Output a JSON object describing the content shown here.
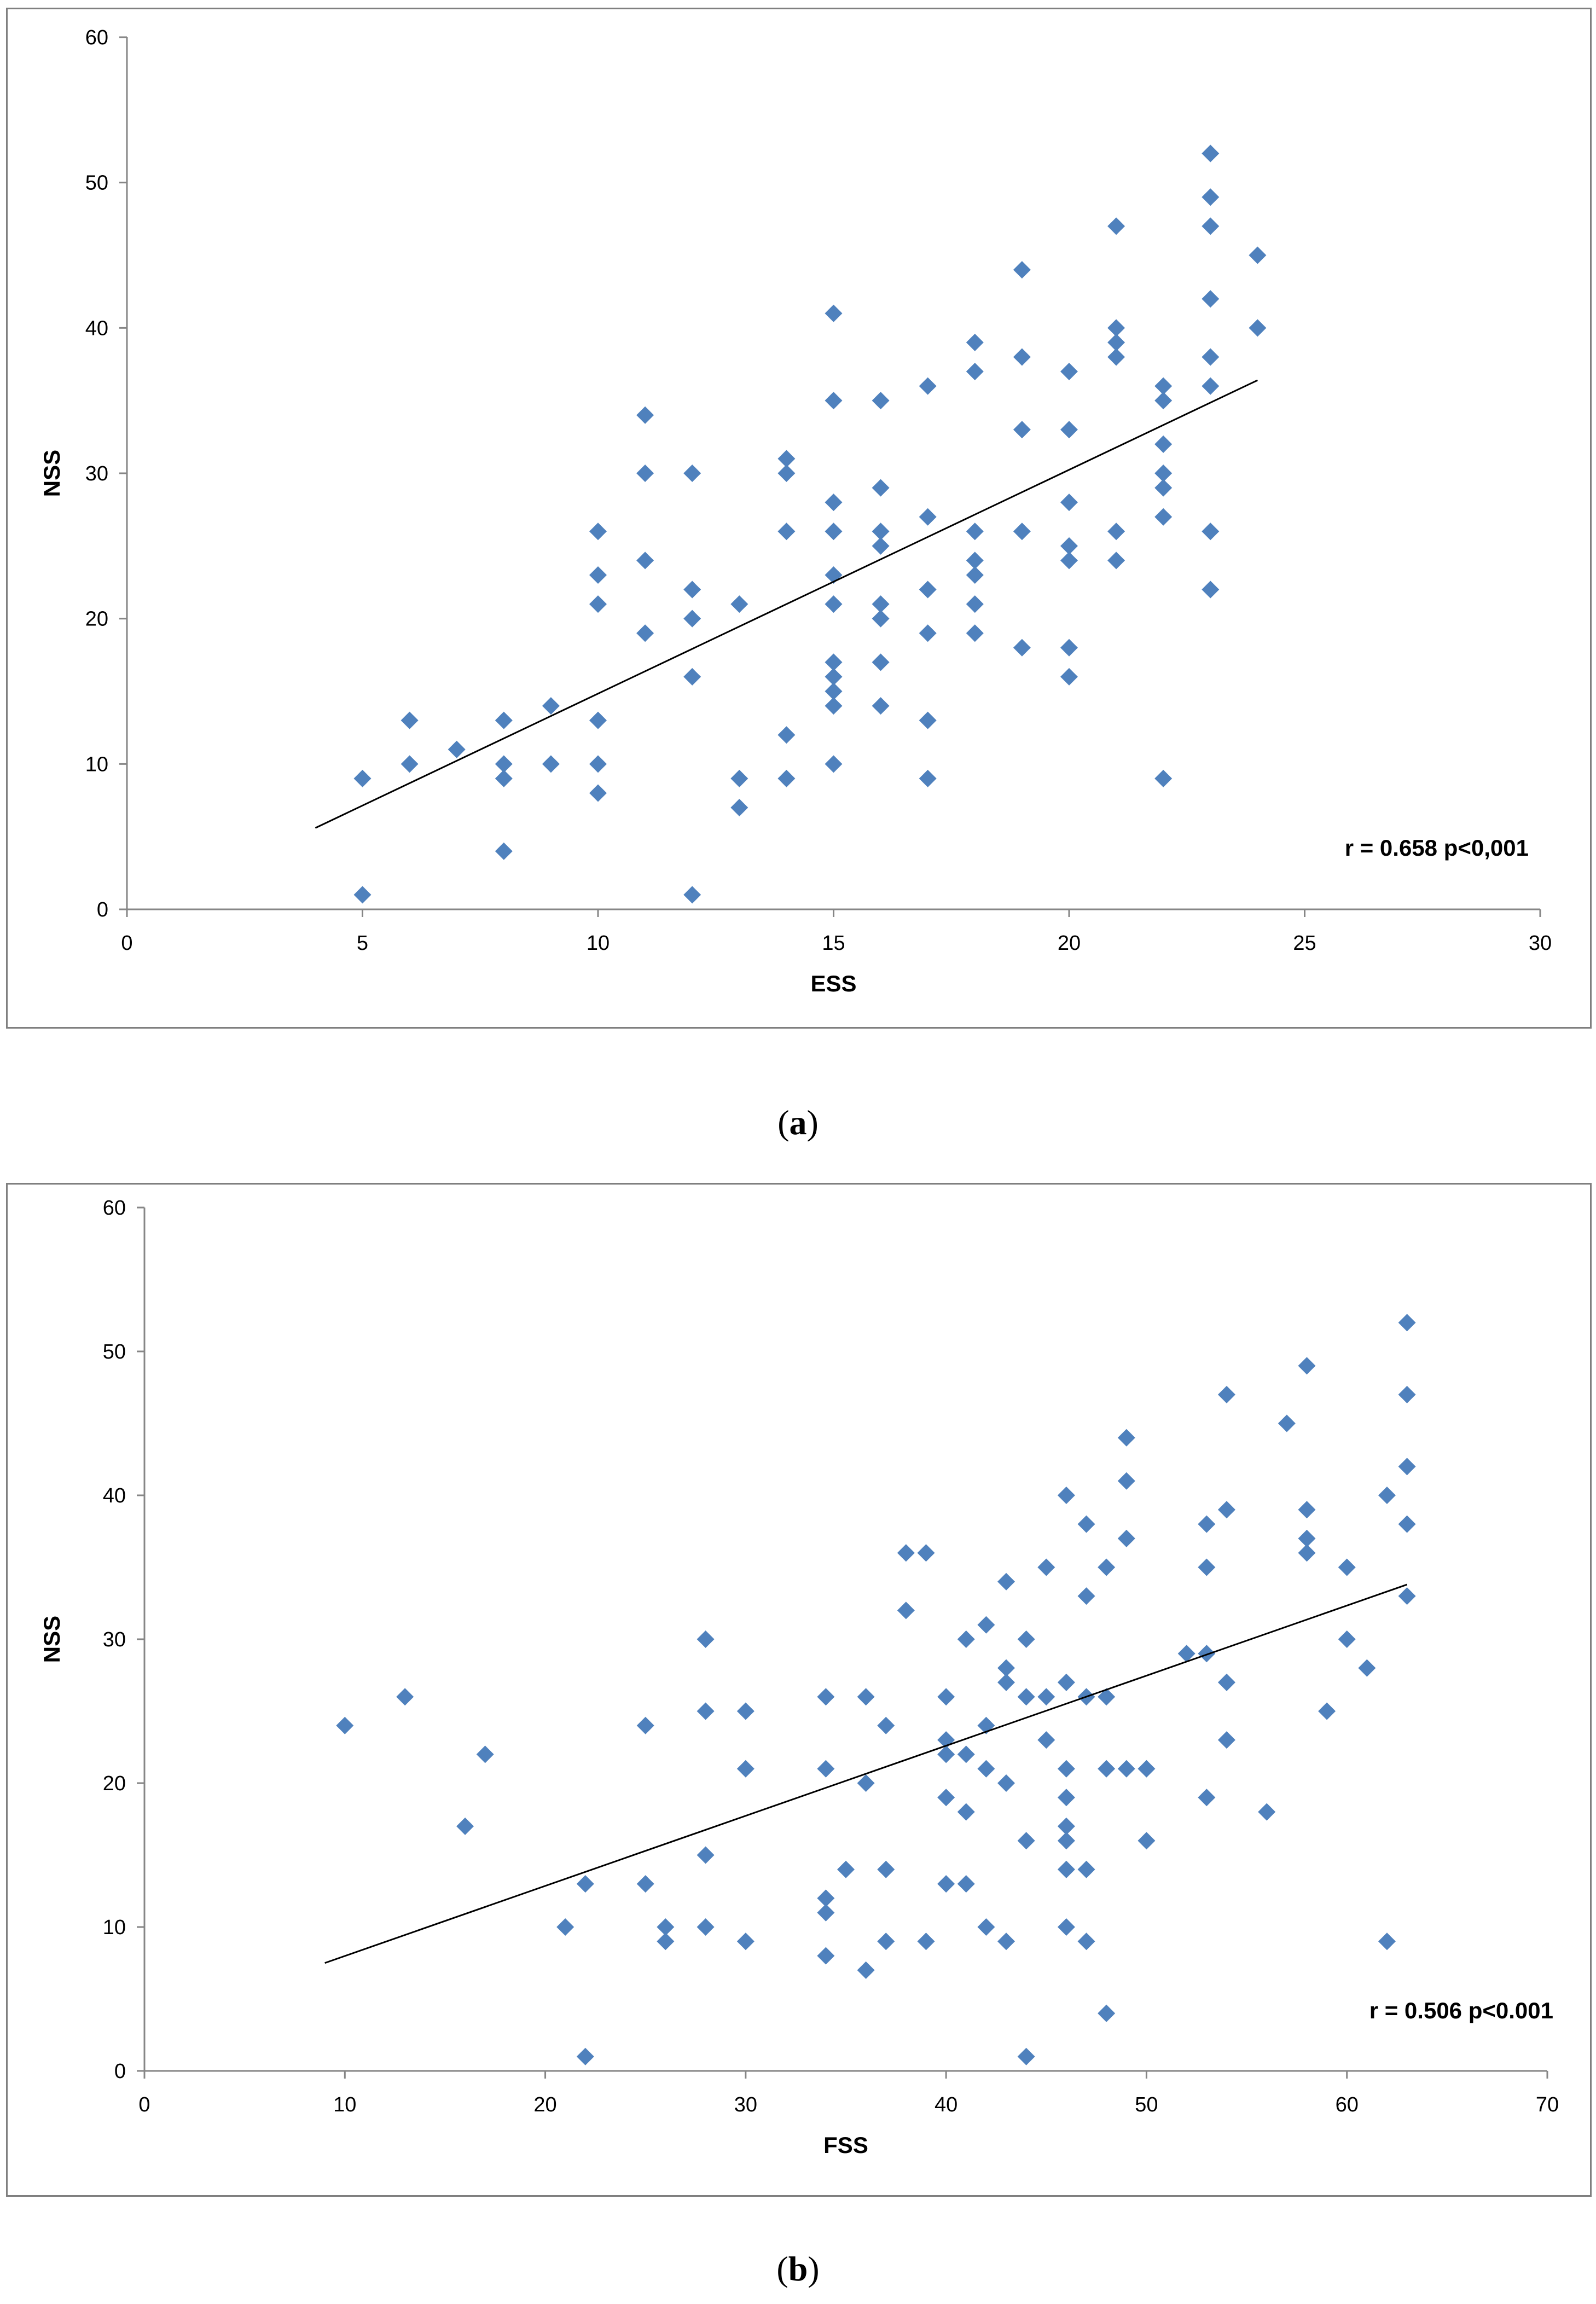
{
  "chart_data": [
    {
      "type": "scatter",
      "panel_label": "a",
      "xlabel": "ESS",
      "ylabel": "NSS",
      "xlim": [
        0,
        30
      ],
      "ylim": [
        0,
        60
      ],
      "x_ticks": [
        0,
        5,
        10,
        15,
        20,
        25,
        30
      ],
      "y_ticks": [
        0,
        10,
        20,
        30,
        40,
        50,
        60
      ],
      "annotation": "r = 0.658 p<0,001",
      "trendline": {
        "x_start": 4,
        "y_start": 5.6,
        "x_end": 24,
        "y_end": 36.4
      },
      "marker_color": "#4f81bd",
      "points": [
        [
          5,
          9
        ],
        [
          5,
          1
        ],
        [
          6,
          13
        ],
        [
          6,
          10
        ],
        [
          7,
          11
        ],
        [
          8,
          13
        ],
        [
          8,
          10
        ],
        [
          8,
          9
        ],
        [
          8,
          4
        ],
        [
          9,
          14
        ],
        [
          9,
          10
        ],
        [
          10,
          26
        ],
        [
          10,
          23
        ],
        [
          10,
          21
        ],
        [
          10,
          13
        ],
        [
          10,
          10
        ],
        [
          10,
          8
        ],
        [
          11,
          34
        ],
        [
          11,
          30
        ],
        [
          11,
          24
        ],
        [
          11,
          19
        ],
        [
          12,
          30
        ],
        [
          12,
          22
        ],
        [
          12,
          20
        ],
        [
          12,
          16
        ],
        [
          12,
          1
        ],
        [
          13,
          21
        ],
        [
          13,
          9
        ],
        [
          13,
          7
        ],
        [
          14,
          31
        ],
        [
          14,
          30
        ],
        [
          14,
          26
        ],
        [
          14,
          12
        ],
        [
          14,
          9
        ],
        [
          15,
          41
        ],
        [
          15,
          35
        ],
        [
          15,
          28
        ],
        [
          15,
          26
        ],
        [
          15,
          23
        ],
        [
          15,
          21
        ],
        [
          15,
          17
        ],
        [
          15,
          16
        ],
        [
          15,
          15
        ],
        [
          15,
          14
        ],
        [
          15,
          10
        ],
        [
          16,
          35
        ],
        [
          16,
          29
        ],
        [
          16,
          26
        ],
        [
          16,
          25
        ],
        [
          16,
          21
        ],
        [
          16,
          20
        ],
        [
          16,
          17
        ],
        [
          16,
          14
        ],
        [
          17,
          36
        ],
        [
          17,
          27
        ],
        [
          17,
          22
        ],
        [
          17,
          19
        ],
        [
          17,
          13
        ],
        [
          17,
          9
        ],
        [
          18,
          39
        ],
        [
          18,
          37
        ],
        [
          18,
          26
        ],
        [
          18,
          24
        ],
        [
          18,
          23
        ],
        [
          18,
          21
        ],
        [
          18,
          19
        ],
        [
          19,
          44
        ],
        [
          19,
          38
        ],
        [
          19,
          33
        ],
        [
          19,
          26
        ],
        [
          19,
          18
        ],
        [
          20,
          37
        ],
        [
          20,
          33
        ],
        [
          20,
          28
        ],
        [
          20,
          25
        ],
        [
          20,
          24
        ],
        [
          20,
          18
        ],
        [
          20,
          16
        ],
        [
          21,
          47
        ],
        [
          21,
          40
        ],
        [
          21,
          39
        ],
        [
          21,
          38
        ],
        [
          21,
          26
        ],
        [
          21,
          24
        ],
        [
          22,
          36
        ],
        [
          22,
          35
        ],
        [
          22,
          32
        ],
        [
          22,
          30
        ],
        [
          22,
          29
        ],
        [
          22,
          27
        ],
        [
          22,
          9
        ],
        [
          23,
          52
        ],
        [
          23,
          49
        ],
        [
          23,
          47
        ],
        [
          23,
          42
        ],
        [
          23,
          38
        ],
        [
          23,
          36
        ],
        [
          23,
          26
        ],
        [
          23,
          22
        ],
        [
          24,
          45
        ],
        [
          24,
          40
        ]
      ]
    },
    {
      "type": "scatter",
      "panel_label": "b",
      "xlabel": "FSS",
      "ylabel": "NSS",
      "xlim": [
        0,
        70
      ],
      "ylim": [
        0,
        60
      ],
      "x_ticks": [
        0,
        10,
        20,
        30,
        40,
        50,
        60,
        70
      ],
      "y_ticks": [
        0,
        10,
        20,
        30,
        40,
        50,
        60
      ],
      "annotation": "r = 0.506 p<0.001",
      "trendline": {
        "x_start": 9,
        "y_start": 7.5,
        "x_end": 63,
        "y_end": 33.8
      },
      "marker_color": "#4f81bd",
      "points": [
        [
          10,
          24
        ],
        [
          13,
          26
        ],
        [
          16,
          17
        ],
        [
          17,
          22
        ],
        [
          21,
          10
        ],
        [
          22,
          13
        ],
        [
          22,
          1
        ],
        [
          25,
          24
        ],
        [
          25,
          13
        ],
        [
          26,
          10
        ],
        [
          26,
          9
        ],
        [
          28,
          30
        ],
        [
          28,
          25
        ],
        [
          28,
          15
        ],
        [
          28,
          10
        ],
        [
          30,
          25
        ],
        [
          30,
          21
        ],
        [
          30,
          9
        ],
        [
          34,
          26
        ],
        [
          34,
          21
        ],
        [
          34,
          12
        ],
        [
          34,
          11
        ],
        [
          34,
          8
        ],
        [
          35,
          14
        ],
        [
          36,
          26
        ],
        [
          36,
          20
        ],
        [
          36,
          7
        ],
        [
          37,
          24
        ],
        [
          37,
          14
        ],
        [
          37,
          9
        ],
        [
          38,
          36
        ],
        [
          38,
          32
        ],
        [
          39,
          36
        ],
        [
          39,
          9
        ],
        [
          40,
          26
        ],
        [
          40,
          23
        ],
        [
          40,
          22
        ],
        [
          40,
          19
        ],
        [
          40,
          13
        ],
        [
          41,
          30
        ],
        [
          41,
          22
        ],
        [
          41,
          18
        ],
        [
          41,
          13
        ],
        [
          42,
          31
        ],
        [
          42,
          24
        ],
        [
          42,
          21
        ],
        [
          42,
          10
        ],
        [
          43,
          34
        ],
        [
          43,
          28
        ],
        [
          43,
          27
        ],
        [
          43,
          20
        ],
        [
          43,
          9
        ],
        [
          44,
          30
        ],
        [
          44,
          26
        ],
        [
          44,
          16
        ],
        [
          44,
          1
        ],
        [
          45,
          35
        ],
        [
          45,
          26
        ],
        [
          45,
          23
        ],
        [
          46,
          40
        ],
        [
          46,
          27
        ],
        [
          46,
          21
        ],
        [
          46,
          19
        ],
        [
          46,
          17
        ],
        [
          46,
          16
        ],
        [
          46,
          14
        ],
        [
          46,
          10
        ],
        [
          47,
          38
        ],
        [
          47,
          33
        ],
        [
          47,
          26
        ],
        [
          47,
          14
        ],
        [
          47,
          9
        ],
        [
          48,
          35
        ],
        [
          48,
          26
        ],
        [
          48,
          21
        ],
        [
          48,
          4
        ],
        [
          49,
          44
        ],
        [
          49,
          41
        ],
        [
          49,
          37
        ],
        [
          49,
          21
        ],
        [
          50,
          21
        ],
        [
          50,
          16
        ],
        [
          52,
          29
        ],
        [
          53,
          38
        ],
        [
          53,
          35
        ],
        [
          53,
          29
        ],
        [
          53,
          19
        ],
        [
          54,
          47
        ],
        [
          54,
          39
        ],
        [
          54,
          27
        ],
        [
          54,
          23
        ],
        [
          56,
          18
        ],
        [
          57,
          45
        ],
        [
          58,
          49
        ],
        [
          58,
          39
        ],
        [
          58,
          37
        ],
        [
          58,
          36
        ],
        [
          59,
          25
        ],
        [
          60,
          35
        ],
        [
          60,
          30
        ],
        [
          61,
          28
        ],
        [
          62,
          40
        ],
        [
          62,
          9
        ],
        [
          63,
          52
        ],
        [
          63,
          47
        ],
        [
          63,
          42
        ],
        [
          63,
          38
        ],
        [
          63,
          33
        ]
      ]
    }
  ]
}
